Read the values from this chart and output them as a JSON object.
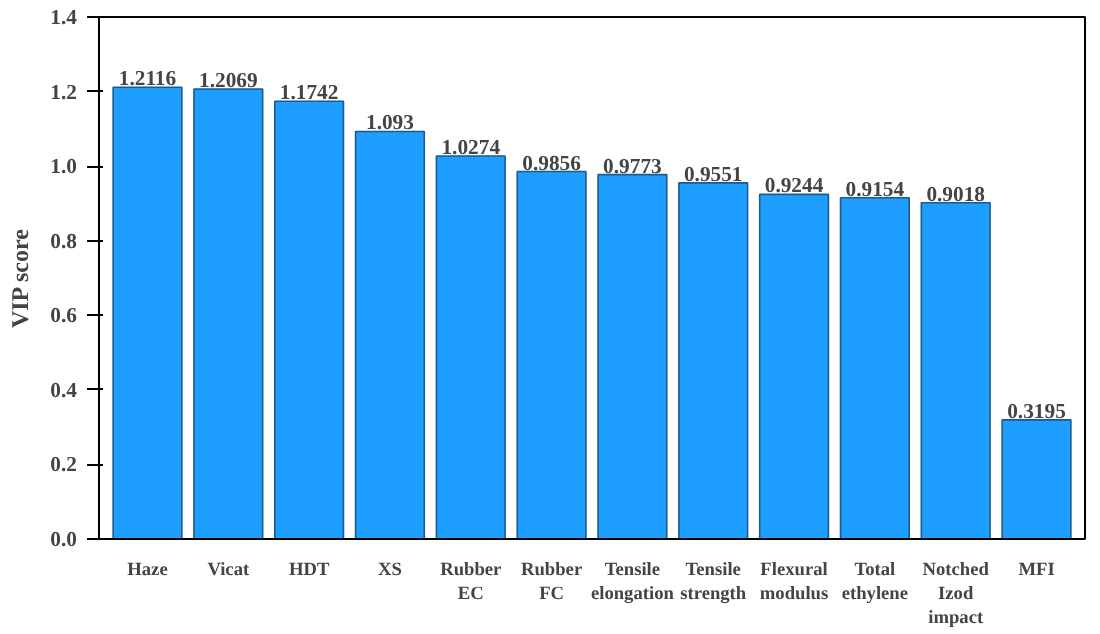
{
  "chart_data": {
    "type": "bar",
    "ylabel": "VIP score",
    "categories": [
      "Haze",
      "Vicat",
      "HDT",
      "XS",
      "Rubber\nEC",
      "Rubber\nFC",
      "Tensile\nelongation",
      "Tensile\nstrength",
      "Flexural\nmodulus",
      "Total\nethylene",
      "Notched\nIzod\nimpact",
      "MFI"
    ],
    "values": [
      1.2116,
      1.2069,
      1.1742,
      1.093,
      1.0274,
      0.9856,
      0.9773,
      0.9551,
      0.9244,
      0.9154,
      0.9018,
      0.3195
    ],
    "color": "#1e9fff",
    "ylim": [
      0,
      1.4
    ],
    "yticks": [
      {
        "value": 0,
        "label": "0.0"
      },
      {
        "value": 0.2,
        "label": "0.2"
      },
      {
        "value": 0.4,
        "label": "0.4"
      },
      {
        "value": 0.6,
        "label": "0.6"
      },
      {
        "value": 0.8,
        "label": "0.8"
      },
      {
        "value": 1.0,
        "label": "1.0"
      },
      {
        "value": 1.2,
        "label": "1.2"
      },
      {
        "value": 1.4,
        "label": "1.4"
      }
    ],
    "data_labels": true,
    "grid": false
  }
}
